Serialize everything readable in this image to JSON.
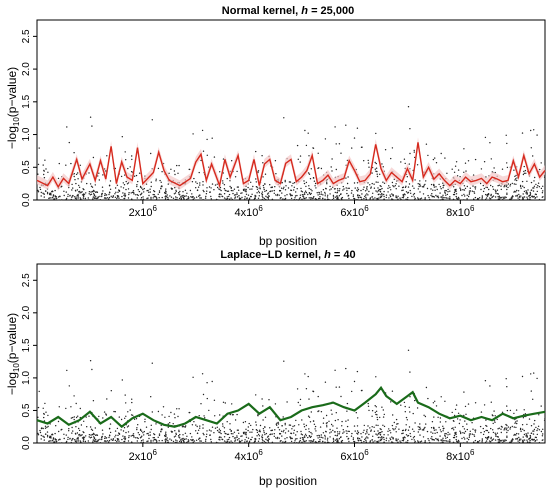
{
  "chart_data": [
    {
      "type": "scatter",
      "title": "Normal kernel, h = 25,000",
      "title_parts": {
        "pre": "Normal kernel, ",
        "italic": "h",
        "post": " = 25,000"
      },
      "xlabel": "bp position",
      "ylabel": "-log10(p-value)",
      "ylabel_parts": {
        "pre": "−log",
        "sub": "10",
        "post": "(p−value)"
      },
      "xlim": [
        0,
        9600000
      ],
      "ylim": [
        0,
        2.75
      ],
      "xticks": [
        {
          "value": 2000000,
          "base": "2x10",
          "exp": "6"
        },
        {
          "value": 4000000,
          "base": "4x10",
          "exp": "6"
        },
        {
          "value": 6000000,
          "base": "6x10",
          "exp": "6"
        },
        {
          "value": 8000000,
          "base": "8x10",
          "exp": "6"
        }
      ],
      "yticks": [
        "0.0",
        "0.5",
        "1.0",
        "1.5",
        "2.0",
        "2.5"
      ],
      "ytick_values": [
        0,
        0.5,
        1.0,
        1.5,
        2.0,
        2.5
      ],
      "grid": false,
      "series": [
        {
          "kind": "smoothed-line",
          "color": "#d62a1e",
          "band_color": "#f4c7c7",
          "x": [
            0,
            200000,
            300000,
            400000,
            500000,
            600000,
            750000,
            850000,
            1000000,
            1100000,
            1200000,
            1300000,
            1400000,
            1500000,
            1600000,
            1700000,
            1800000,
            1900000,
            2000000,
            2200000,
            2300000,
            2400000,
            2500000,
            2700000,
            2900000,
            3000000,
            3100000,
            3200000,
            3300000,
            3450000,
            3550000,
            3650000,
            3800000,
            3900000,
            4000000,
            4100000,
            4200000,
            4300000,
            4400000,
            4500000,
            4600000,
            4700000,
            4800000,
            4900000,
            5000000,
            5100000,
            5200000,
            5300000,
            5400000,
            5500000,
            5600000,
            5700000,
            5800000,
            5900000,
            6000000,
            6100000,
            6200000,
            6300000,
            6400000,
            6500000,
            6600000,
            6700000,
            6800000,
            6900000,
            7000000,
            7100000,
            7200000,
            7300000,
            7400000,
            7500000,
            7600000,
            7700000,
            7800000,
            7900000,
            8000000,
            8100000,
            8200000,
            8300000,
            8400000,
            8500000,
            8600000,
            8700000,
            8800000,
            8900000,
            9000000,
            9100000,
            9200000,
            9300000,
            9400000,
            9500000,
            9600000
          ],
          "y": [
            0.3,
            0.22,
            0.35,
            0.2,
            0.33,
            0.25,
            0.62,
            0.32,
            0.55,
            0.3,
            0.6,
            0.32,
            0.82,
            0.25,
            0.58,
            0.35,
            0.3,
            0.8,
            0.25,
            0.42,
            0.73,
            0.45,
            0.3,
            0.22,
            0.33,
            0.58,
            0.7,
            0.3,
            0.55,
            0.22,
            0.62,
            0.35,
            0.68,
            0.25,
            0.3,
            0.62,
            0.22,
            0.55,
            0.62,
            0.3,
            0.25,
            0.56,
            0.62,
            0.28,
            0.35,
            0.45,
            0.68,
            0.25,
            0.3,
            0.38,
            0.25,
            0.3,
            0.33,
            0.6,
            0.45,
            0.28,
            0.3,
            0.4,
            0.85,
            0.48,
            0.3,
            0.42,
            0.35,
            0.28,
            0.48,
            0.3,
            0.88,
            0.35,
            0.5,
            0.32,
            0.4,
            0.3,
            0.22,
            0.3,
            0.25,
            0.35,
            0.28,
            0.3,
            0.33,
            0.25,
            0.35,
            0.32,
            0.28,
            0.3,
            0.6,
            0.35,
            0.68,
            0.4,
            0.55,
            0.35,
            0.45
          ]
        }
      ]
    },
    {
      "type": "scatter",
      "title": "Laplace-LD kernel, h = 40",
      "title_parts": {
        "pre": "Laplace−LD kernel, ",
        "italic": "h",
        "post": " = 40"
      },
      "xlabel": "bp position",
      "ylabel": "-log10(p-value)",
      "ylabel_parts": {
        "pre": "−log",
        "sub": "10",
        "post": "(p−value)"
      },
      "xlim": [
        0,
        9600000
      ],
      "ylim": [
        0,
        2.75
      ],
      "xticks": [
        {
          "value": 2000000,
          "base": "2x10",
          "exp": "6"
        },
        {
          "value": 4000000,
          "base": "4x10",
          "exp": "6"
        },
        {
          "value": 6000000,
          "base": "6x10",
          "exp": "6"
        },
        {
          "value": 8000000,
          "base": "8x10",
          "exp": "6"
        }
      ],
      "yticks": [
        "0.0",
        "0.5",
        "1.0",
        "1.5",
        "2.0",
        "2.5"
      ],
      "ytick_values": [
        0,
        0.5,
        1.0,
        1.5,
        2.0,
        2.5
      ],
      "grid": false,
      "series": [
        {
          "kind": "smoothed-line",
          "color": "#1a6b1a",
          "x": [
            0,
            200000,
            400000,
            600000,
            800000,
            1000000,
            1200000,
            1400000,
            1600000,
            1800000,
            2000000,
            2200000,
            2400000,
            2600000,
            2800000,
            3000000,
            3200000,
            3400000,
            3600000,
            3800000,
            4000000,
            4200000,
            4400000,
            4600000,
            4800000,
            5000000,
            5200000,
            5400000,
            5600000,
            5800000,
            6000000,
            6200000,
            6400000,
            6500000,
            6600000,
            6800000,
            7000000,
            7100000,
            7200000,
            7400000,
            7600000,
            7800000,
            8000000,
            8200000,
            8400000,
            8600000,
            8800000,
            9000000,
            9200000,
            9400000,
            9600000
          ],
          "y": [
            0.35,
            0.3,
            0.4,
            0.28,
            0.35,
            0.48,
            0.3,
            0.4,
            0.25,
            0.38,
            0.45,
            0.35,
            0.28,
            0.25,
            0.3,
            0.4,
            0.35,
            0.3,
            0.45,
            0.5,
            0.6,
            0.45,
            0.55,
            0.35,
            0.4,
            0.5,
            0.55,
            0.58,
            0.62,
            0.55,
            0.5,
            0.62,
            0.75,
            0.85,
            0.72,
            0.6,
            0.72,
            0.78,
            0.62,
            0.55,
            0.45,
            0.38,
            0.42,
            0.35,
            0.4,
            0.35,
            0.45,
            0.38,
            0.42,
            0.45,
            0.48
          ]
        }
      ]
    }
  ]
}
